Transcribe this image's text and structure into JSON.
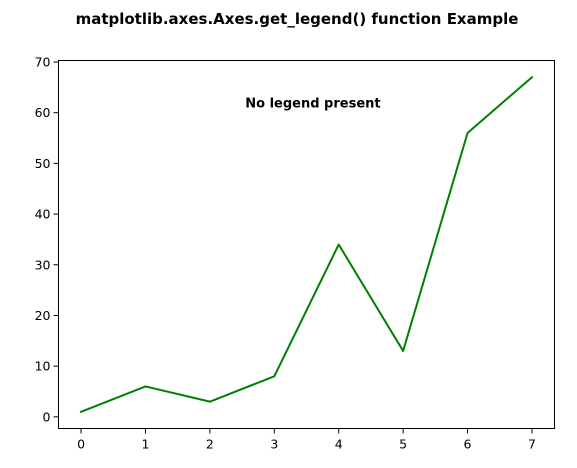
{
  "chart_data": {
    "type": "line",
    "title": "matplotlib.axes.Axes.get_legend() function Example",
    "xlabel": "",
    "ylabel": "",
    "x": [
      0,
      1,
      2,
      3,
      4,
      5,
      6,
      7
    ],
    "series": [
      {
        "values": [
          1,
          6,
          3,
          8,
          34,
          13,
          56,
          67
        ],
        "color": "#008000"
      }
    ],
    "xlim": [
      -0.35,
      7.35
    ],
    "ylim": [
      -2.3,
      70.3
    ],
    "xticks": [
      0,
      1,
      2,
      3,
      4,
      5,
      6,
      7
    ],
    "yticks": [
      0,
      10,
      20,
      30,
      40,
      50,
      60,
      70
    ],
    "grid": false,
    "legend": "none",
    "annotation": {
      "text": "No legend present",
      "x": 3.6,
      "y": 61
    }
  }
}
